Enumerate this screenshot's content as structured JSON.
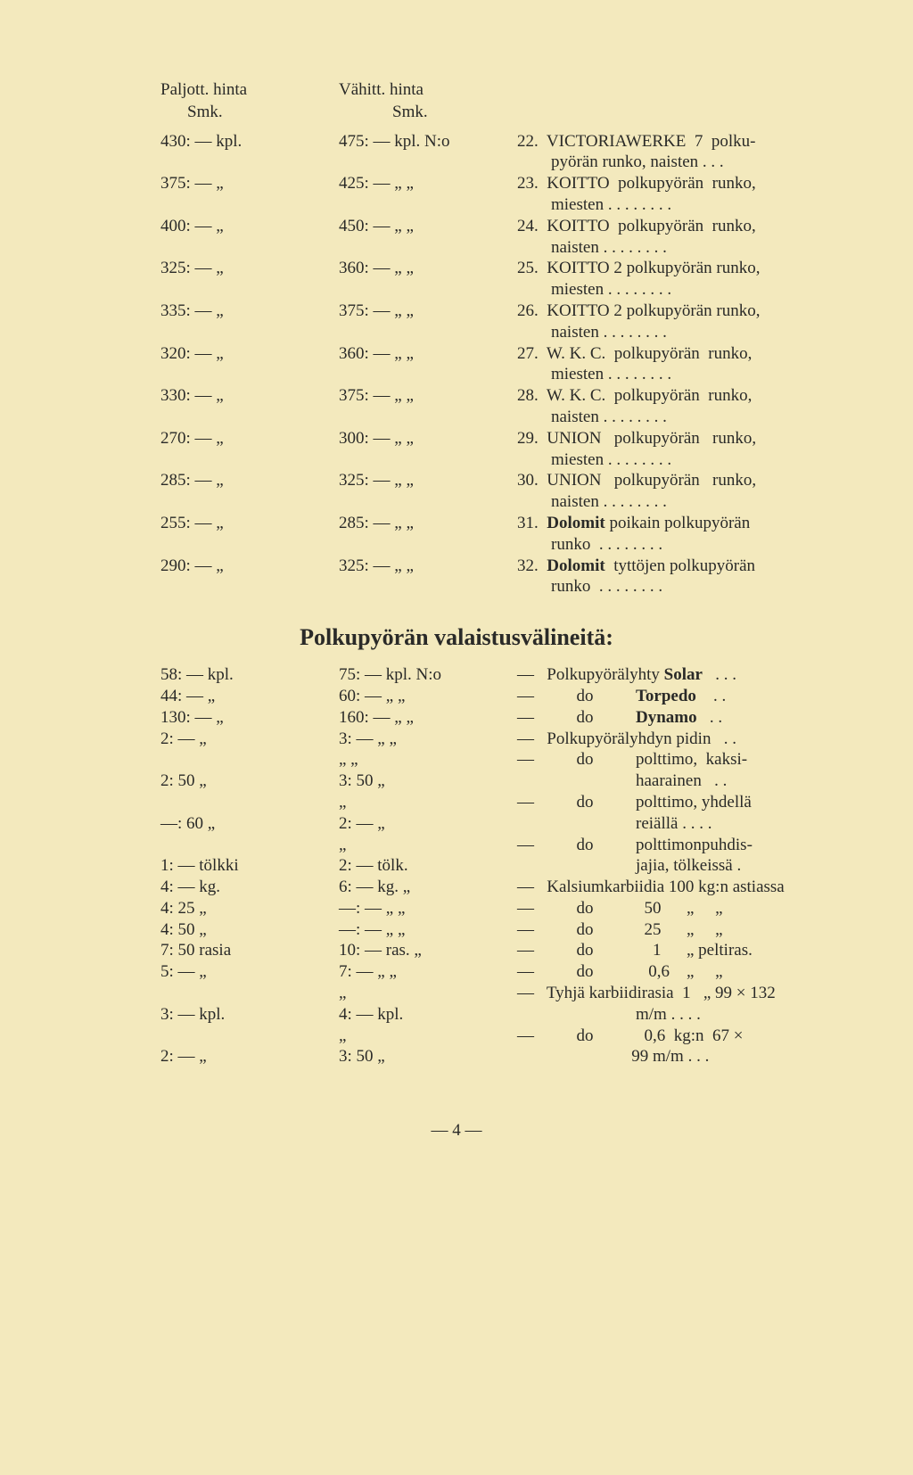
{
  "header": {
    "col1_line1": "Paljott. hinta",
    "col1_line2": "Smk.",
    "col2_line1": "Vähitt. hinta",
    "col2_line2": "Smk."
  },
  "rows": [
    {
      "c1": "430: — kpl.",
      "c2": "475: — kpl. N:o",
      "c3": "22.  VICTORIAWERKE  7  polku-"
    },
    {
      "c1": "",
      "c2": "",
      "c3": "        pyörän runko, naisten . . ."
    },
    {
      "c1": "375: —  „",
      "c2": "425: —  „   „",
      "c3": "23.  KOITTO  polkupyörän  runko,"
    },
    {
      "c1": "",
      "c2": "",
      "c3": "        miesten . . . . . . . ."
    },
    {
      "c1": "400: —  „",
      "c2": "450: —  „   „",
      "c3": "24.  KOITTO  polkupyörän  runko,"
    },
    {
      "c1": "",
      "c2": "",
      "c3": "        naisten . . . . . . . ."
    },
    {
      "c1": "325: —  „",
      "c2": "360: —  „   „",
      "c3": "25.  KOITTO 2 polkupyörän runko,"
    },
    {
      "c1": "",
      "c2": "",
      "c3": "        miesten . . . . . . . ."
    },
    {
      "c1": "335: —  „",
      "c2": "375: —  „   „",
      "c3": "26.  KOITTO 2 polkupyörän runko,"
    },
    {
      "c1": "",
      "c2": "",
      "c3": "        naisten . . . . . . . ."
    },
    {
      "c1": "320: —  „",
      "c2": "360: —  „   „",
      "c3": "27.  W. K. C.  polkupyörän  runko,"
    },
    {
      "c1": "",
      "c2": "",
      "c3": "        miesten . . . . . . . ."
    },
    {
      "c1": "330: —  „",
      "c2": "375: —  „   „",
      "c3": "28.  W. K. C.  polkupyörän  runko,"
    },
    {
      "c1": "",
      "c2": "",
      "c3": "        naisten . . . . . . . ."
    },
    {
      "c1": "270: —  „",
      "c2": "300: —  „   „",
      "c3": "29.  UNION   polkupyörän   runko,"
    },
    {
      "c1": "",
      "c2": "",
      "c3": "        miesten . . . . . . . ."
    },
    {
      "c1": "285: —  „",
      "c2": "325: —  „   „",
      "c3": "30.  UNION   polkupyörän   runko,"
    },
    {
      "c1": "",
      "c2": "",
      "c3": "        naisten . . . . . . . ."
    },
    {
      "c1": "255: —  „",
      "c2": "285: —  „   „",
      "c3": "31.  Dolomit poikain polkupyörän"
    },
    {
      "c1": "",
      "c2": "",
      "c3": "        runko  . . . . . . . ."
    },
    {
      "c1": "290: —  „",
      "c2": "325: —  „   „",
      "c3": "32.  Dolomit  tyttöjen polkupyörän"
    },
    {
      "c1": "",
      "c2": "",
      "c3": "        runko  . . . . . . . ."
    }
  ],
  "section_title": "Polkupyörän valaistusvälineitä:",
  "rows2": [
    {
      "c1": "58: — kpl.",
      "c2": "75: — kpl. N:o",
      "c3": "—   Polkupyörälyhty Solar   . . ."
    },
    {
      "c1": "44: —  „",
      "c2": "60: —  „    „",
      "c3": "—          do          Torpedo    . ."
    },
    {
      "c1": "130: —  „",
      "c2": "160: —  „    „",
      "c3": "—          do          Dynamo   . ."
    },
    {
      "c1": "2: —  „",
      "c2": "3: —  „    „",
      "c3": "—   Polkupyörälyhdyn pidin   . ."
    },
    {
      "c1": "",
      "c2": "            „    „",
      "c3": "—          do          polttimo,  kaksi-"
    },
    {
      "c1": "2: 50  „",
      "c2": "3: 50  „",
      "c3": "                            haarainen   . ."
    },
    {
      "c1": "",
      "c2": "            „",
      "c3": "—          do          polttimo, yhdellä"
    },
    {
      "c1": "—: 60  „",
      "c2": "2: —  „",
      "c3": "                            reiällä . . . ."
    },
    {
      "c1": "",
      "c2": "            „",
      "c3": "—          do          polttimonpuhdis-"
    },
    {
      "c1": "1: —  tölkki",
      "c2": "2: — tölk.",
      "c3": "                            jajia, tölkeissä ."
    },
    {
      "c1": "4: —  kg.",
      "c2": "6: —  kg.    „",
      "c3": "—   Kalsiumkarbiidia 100 kg:n astiassa"
    },
    {
      "c1": "4: 25  „",
      "c2": "—: —  „    „",
      "c3": "—          do            50      „     „"
    },
    {
      "c1": "4: 50  „",
      "c2": "—: —  „    „",
      "c3": "—          do            25      „     „"
    },
    {
      "c1": "7: 50 rasia",
      "c2": "10: — ras.  „",
      "c3": "—          do              1      „ peltiras."
    },
    {
      "c1": "5: —  „",
      "c2": "7: —  „    „",
      "c3": "—          do             0,6    „     „"
    },
    {
      "c1": "",
      "c2": "            „",
      "c3": "—   Tyhjä karbiidirasia  1   „ 99 × 132"
    },
    {
      "c1": "3: —  kpl.",
      "c2": "4: — kpl.",
      "c3": "                            m/m . . . ."
    },
    {
      "c1": "",
      "c2": "            „",
      "c3": "—          do            0,6  kg:n  67 ×"
    },
    {
      "c1": "2: —  „",
      "c2": "3: 50  „",
      "c3": "                           99 m/m . . ."
    }
  ],
  "footer": "— 4 —"
}
